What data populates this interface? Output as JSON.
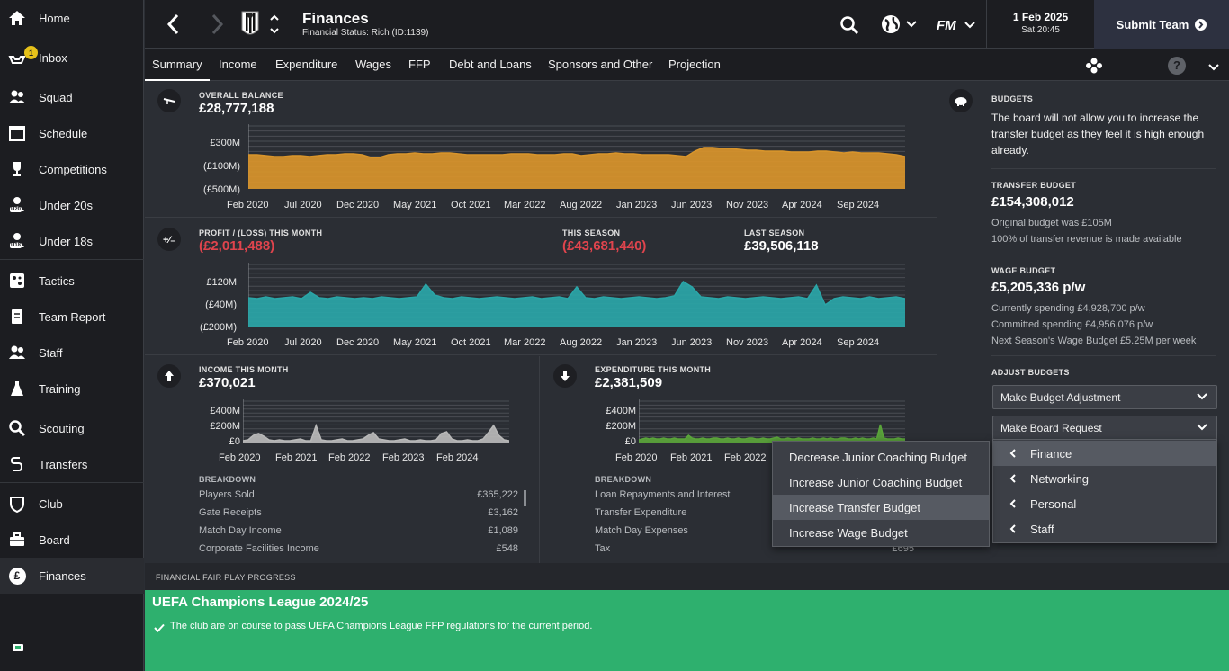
{
  "sidebar": {
    "items": [
      {
        "label": "Home",
        "icon": "home-icon"
      },
      {
        "label": "Inbox",
        "icon": "inbox-icon",
        "badge": "1"
      },
      {
        "label": "Squad",
        "icon": "squad-icon"
      },
      {
        "label": "Schedule",
        "icon": "schedule-icon"
      },
      {
        "label": "Competitions",
        "icon": "trophy-icon"
      },
      {
        "label": "Under 20s",
        "icon": "under20-icon",
        "icon_text": "U20"
      },
      {
        "label": "Under 18s",
        "icon": "under18-icon",
        "icon_text": "U18"
      },
      {
        "label": "Tactics",
        "icon": "tactics-icon"
      },
      {
        "label": "Team Report",
        "icon": "report-icon"
      },
      {
        "label": "Staff",
        "icon": "staff-icon"
      },
      {
        "label": "Training",
        "icon": "training-icon"
      },
      {
        "label": "Scouting",
        "icon": "scouting-icon"
      },
      {
        "label": "Transfers",
        "icon": "transfers-icon"
      },
      {
        "label": "Club",
        "icon": "club-icon"
      },
      {
        "label": "Board",
        "icon": "board-icon"
      },
      {
        "label": "Finances",
        "icon": "finances-icon",
        "icon_text": "£"
      }
    ]
  },
  "header": {
    "title": "Finances",
    "subtitle": "Financial Status: Rich (ID:1139)",
    "date": "1 Feb 2025",
    "time": "Sat 20:45",
    "submit_label": "Submit Team",
    "fm_logo": "FM"
  },
  "tabs": [
    "Summary",
    "Income",
    "Expenditure",
    "Wages",
    "FFP",
    "Debt and Loans",
    "Sponsors and Other",
    "Projection"
  ],
  "overall": {
    "label": "OVERALL BALANCE",
    "value": "£28,777,188",
    "yticks": [
      "£300M",
      "(£100M)",
      "(£500M)"
    ],
    "xticks": [
      "Feb 2020",
      "Jul 2020",
      "Dec 2020",
      "May 2021",
      "Oct 2021",
      "Mar 2022",
      "Aug 2022",
      "Jan 2023",
      "Jun 2023",
      "Nov 2023",
      "Apr 2024",
      "Sep 2024"
    ]
  },
  "profit": {
    "label_month": "PROFIT / (LOSS) THIS MONTH",
    "value_month": "(£2,011,488)",
    "label_season": "THIS SEASON",
    "value_season": "(£43,681,440)",
    "label_last": "LAST SEASON",
    "value_last": "£39,506,118",
    "yticks": [
      "£120M",
      "(£40M)",
      "(£200M)"
    ],
    "xticks": [
      "Feb 2020",
      "Jul 2020",
      "Dec 2020",
      "May 2021",
      "Oct 2021",
      "Mar 2022",
      "Aug 2022",
      "Jan 2023",
      "Jun 2023",
      "Nov 2023",
      "Apr 2024",
      "Sep 2024"
    ]
  },
  "income": {
    "label": "INCOME THIS MONTH",
    "value": "£370,021",
    "yticks": [
      "£400M",
      "£200M",
      "£0"
    ],
    "xticks": [
      "Feb 2020",
      "Feb 2021",
      "Feb 2022",
      "Feb 2023",
      "Feb 2024"
    ],
    "breakdown_label": "BREAKDOWN",
    "rows": [
      {
        "name": "Players Sold",
        "value": "£365,222"
      },
      {
        "name": "Gate Receipts",
        "value": "£3,162"
      },
      {
        "name": "Match Day Income",
        "value": "£1,089"
      },
      {
        "name": "Corporate Facilities Income",
        "value": "£548"
      }
    ]
  },
  "expenditure": {
    "label": "EXPENDITURE THIS MONTH",
    "value": "£2,381,509",
    "yticks": [
      "£400M",
      "£200M",
      "£0"
    ],
    "xticks": [
      "Feb 2020",
      "Feb 2021",
      "Feb 2022"
    ],
    "breakdown_label": "BREAKDOWN",
    "rows": [
      {
        "name": "Loan Repayments and Interest",
        "value": ""
      },
      {
        "name": "Transfer Expenditure",
        "value": ""
      },
      {
        "name": "Match Day Expenses",
        "value": ""
      },
      {
        "name": "Tax",
        "value": "£695"
      }
    ]
  },
  "budgets": {
    "label": "BUDGETS",
    "message": "The board will not allow you to increase the transfer budget as they feel it is high enough already.",
    "transfer_label": "TRANSFER BUDGET",
    "transfer_value": "£154,308,012",
    "transfer_note1": "Original budget was £105M",
    "transfer_note2": "100% of transfer revenue is made available",
    "wage_label": "WAGE BUDGET",
    "wage_value": "£5,205,336 p/w",
    "wage_note1": "Currently spending £4,928,700 p/w",
    "wage_note2": "Committed spending £4,956,076 p/w",
    "wage_note3": "Next Season's Wage Budget £5.25M per week",
    "adjust_label": "ADJUST BUDGETS",
    "dropdown1": "Make Budget Adjustment",
    "dropdown2": "Make Board Request"
  },
  "submenu": [
    "Decrease Junior Coaching Budget",
    "Increase Junior Coaching Budget",
    "Increase Transfer Budget",
    "Increase Wage Budget"
  ],
  "board_menu": [
    "Finance",
    "Networking",
    "Personal",
    "Staff"
  ],
  "ffp": {
    "header": "FINANCIAL FAIR PLAY PROGRESS",
    "title": "UEFA Champions League 2024/25",
    "message": "The club are on course to pass UEFA Champions League FFP regulations for the current period."
  },
  "colors": {
    "balance": "#d9952b",
    "profit": "#2aa6a8",
    "income": "#b8b8b8",
    "expenditure": "#5aa53a",
    "ffp": "#2eb06e",
    "loss": "#e0444d"
  }
}
